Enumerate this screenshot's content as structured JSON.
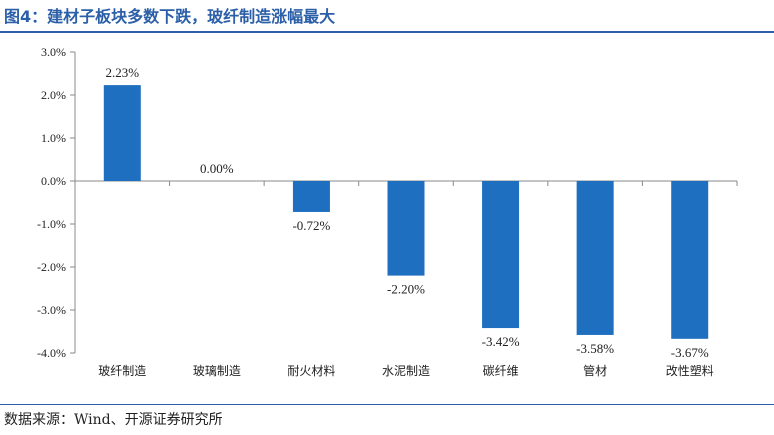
{
  "title": "图4：建材子板块多数下跌，玻纤制造涨幅最大",
  "source": "数据来源：Wind、开源证券研究所",
  "colors": {
    "accent": "#2b5fa8",
    "bar": "#1f6fc0"
  },
  "chart_data": {
    "type": "bar",
    "categories": [
      "玻纤制造",
      "玻璃制造",
      "耐火材料",
      "水泥制造",
      "碳纤维",
      "管材",
      "改性塑料"
    ],
    "values": [
      2.23,
      0.0,
      -0.72,
      -2.2,
      -3.42,
      -3.58,
      -3.67
    ],
    "data_labels": [
      "2.23%",
      "0.00%",
      "-0.72%",
      "-2.20%",
      "-3.42%",
      "-3.58%",
      "-3.67%"
    ],
    "y_ticks": [
      3.0,
      2.0,
      1.0,
      0.0,
      -1.0,
      -2.0,
      -3.0,
      -4.0
    ],
    "y_tick_labels": [
      "3.0%",
      "2.0%",
      "1.0%",
      "0.0%",
      "-1.0%",
      "-2.0%",
      "-3.0%",
      "-4.0%"
    ],
    "ylim": [
      -4.0,
      3.0
    ],
    "grid": false,
    "legend": "none"
  }
}
